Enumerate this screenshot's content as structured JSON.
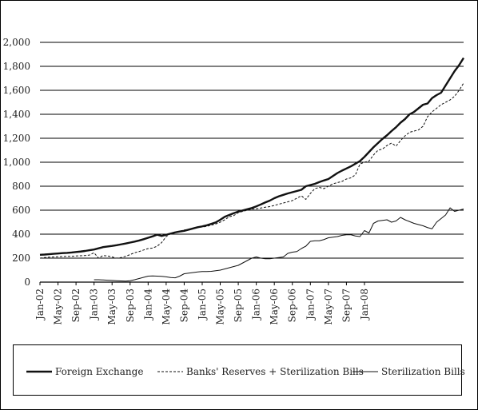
{
  "chart_data": {
    "type": "line",
    "ylim": [
      0,
      2000
    ],
    "yticks": [
      "0",
      "200",
      "400",
      "600",
      "800",
      "1,000",
      "1,200",
      "1,400",
      "1,600",
      "1,800",
      "2,000"
    ],
    "xticks": [
      "Jan-02",
      "May-02",
      "Sep-02",
      "Jan-03",
      "May-03",
      "Sep-03",
      "Jan-04",
      "May-04",
      "Sep-04",
      "Jan-05",
      "May-05",
      "Sep-05",
      "Jan-06",
      "May-06",
      "Sep-06",
      "Jan-07",
      "May-07",
      "Sep-07",
      "Jan-08"
    ],
    "x_start": "Jan-02",
    "x_end": "Apr-08",
    "series": [
      {
        "name": "Foreign Exchange",
        "style": "solid-thick",
        "color": "#111111",
        "values": [
          228,
          230,
          233,
          236,
          239,
          242,
          244,
          247,
          251,
          255,
          260,
          266,
          272,
          282,
          292,
          297,
          302,
          308,
          315,
          322,
          330,
          338,
          347,
          358,
          370,
          382,
          396,
          385,
          395,
          405,
          415,
          422,
          428,
          438,
          448,
          458,
          465,
          474,
          486,
          498,
          520,
          545,
          560,
          575,
          588,
          598,
          608,
          618,
          632,
          648,
          665,
          680,
          700,
          716,
          728,
          740,
          750,
          760,
          770,
          800,
          810,
          820,
          835,
          848,
          860,
          885,
          910,
          930,
          948,
          966,
          988,
          1010,
          1045,
          1085,
          1125,
          1160,
          1195,
          1225,
          1260,
          1292,
          1330,
          1360,
          1400,
          1420,
          1450,
          1480,
          1490,
          1535,
          1560,
          1580,
          1640,
          1700,
          1760,
          1810,
          1870
        ]
      },
      {
        "name": "Banks' Reserves +  Sterilization Bills",
        "style": "dashed",
        "color": "#111111",
        "values": [
          200,
          205,
          208,
          210,
          212,
          213,
          215,
          215,
          218,
          220,
          222,
          226,
          245,
          200,
          222,
          218,
          210,
          200,
          205,
          215,
          230,
          245,
          255,
          268,
          280,
          284,
          300,
          330,
          380,
          405,
          418,
          425,
          435,
          440,
          450,
          455,
          460,
          465,
          475,
          485,
          500,
          520,
          545,
          555,
          580,
          590,
          600,
          610,
          612,
          618,
          625,
          630,
          640,
          650,
          660,
          670,
          680,
          700,
          720,
          690,
          740,
          780,
          790,
          780,
          800,
          820,
          830,
          840,
          860,
          870,
          895,
          985,
          1000,
          1010,
          1060,
          1100,
          1110,
          1140,
          1160,
          1135,
          1180,
          1220,
          1250,
          1260,
          1270,
          1300,
          1380,
          1420,
          1450,
          1480,
          1500,
          1520,
          1550,
          1600,
          1660
        ]
      },
      {
        "name": "Sterilization Bills",
        "style": "solid-thin",
        "color": "#111111",
        "values": [
          null,
          null,
          null,
          null,
          null,
          null,
          null,
          null,
          null,
          null,
          null,
          null,
          20,
          20,
          18,
          16,
          14,
          12,
          10,
          8,
          12,
          20,
          30,
          40,
          50,
          52,
          50,
          48,
          44,
          38,
          36,
          50,
          70,
          75,
          80,
          85,
          88,
          88,
          90,
          95,
          100,
          110,
          120,
          130,
          140,
          160,
          180,
          200,
          210,
          200,
          195,
          195,
          200,
          205,
          210,
          240,
          250,
          255,
          280,
          300,
          340,
          345,
          345,
          355,
          370,
          375,
          380,
          390,
          395,
          395,
          385,
          380,
          430,
          410,
          490,
          510,
          515,
          520,
          500,
          510,
          540,
          520,
          505,
          490,
          480,
          470,
          455,
          445,
          500,
          530,
          560,
          620,
          590,
          600,
          610
        ]
      }
    ]
  }
}
